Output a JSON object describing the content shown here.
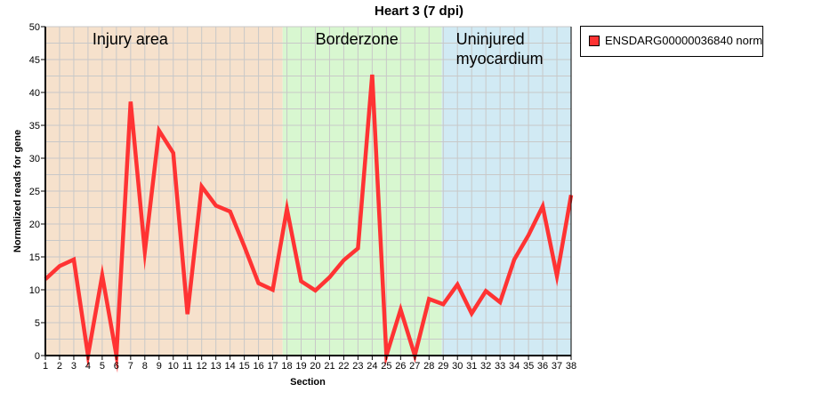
{
  "chart_data": {
    "type": "line",
    "title": "Heart 3 (7 dpi)",
    "xlabel": "Section",
    "ylabel": "Normalized reads for gene",
    "xlim": [
      1,
      38
    ],
    "ylim": [
      0,
      50
    ],
    "y_ticks": [
      0,
      5,
      10,
      15,
      20,
      25,
      30,
      35,
      40,
      45,
      50
    ],
    "x": [
      1,
      2,
      3,
      4,
      5,
      6,
      7,
      8,
      9,
      10,
      11,
      12,
      13,
      14,
      15,
      16,
      17,
      18,
      19,
      20,
      21,
      22,
      23,
      24,
      25,
      26,
      27,
      28,
      29,
      30,
      31,
      32,
      33,
      34,
      35,
      36,
      37,
      38
    ],
    "series": [
      {
        "name": "ENSDARG00000036840 norm",
        "color": "#ff3333",
        "values": [
          11.6,
          13.6,
          14.6,
          0,
          12.2,
          0,
          38.6,
          15.8,
          34.2,
          30.8,
          6.3,
          25.7,
          22.8,
          21.9,
          16.6,
          11.0,
          10.0,
          22.3,
          11.3,
          9.9,
          11.9,
          14.5,
          16.3,
          42.7,
          0,
          7.0,
          0,
          8.6,
          7.8,
          10.8,
          6.4,
          9.8,
          8.1,
          14.6,
          18.3,
          22.7,
          12.1,
          24.4
        ]
      }
    ],
    "regions": [
      {
        "label": "Injury area",
        "x_start": 1,
        "x_end": 17.7,
        "color": "#f6e1cc"
      },
      {
        "label": "Borderzone",
        "x_start": 17.7,
        "x_end": 28.9,
        "color": "#d8f7d0"
      },
      {
        "label": "Uninjured myocardium",
        "x_start": 28.9,
        "x_end": 38,
        "color": "#d1eaf4"
      }
    ],
    "grid": true,
    "legend_position": "right"
  }
}
